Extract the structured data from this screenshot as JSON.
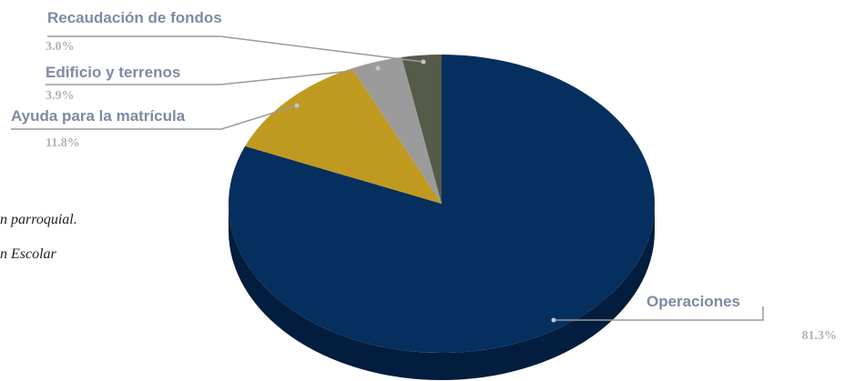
{
  "background_text": {
    "line1": "n parroquial.",
    "line2": "n Escolar"
  },
  "chart_data": {
    "type": "pie",
    "three_d": true,
    "title": "",
    "start_angle": "12 o'clock, clockwise",
    "slices": [
      {
        "label": "Operaciones",
        "value": 81.3,
        "value_label": "81.3%",
        "color": "#052f5f",
        "side_color": "#021d3d"
      },
      {
        "label": "Ayuda para la matrícula",
        "value": 11.8,
        "value_label": "11.8%",
        "color": "#c09a20",
        "side_color": "#806412"
      },
      {
        "label": "Edificio y terrenos",
        "value": 3.9,
        "value_label": "3.9%",
        "color": "#9b9b9b",
        "side_color": "#5f5f5f"
      },
      {
        "label": "Recaudación de fondos",
        "value": 3.0,
        "value_label": "3.0%",
        "color": "#545b48",
        "side_color": "#34392c"
      }
    ],
    "leader_line_color": "#9a9a9a"
  }
}
